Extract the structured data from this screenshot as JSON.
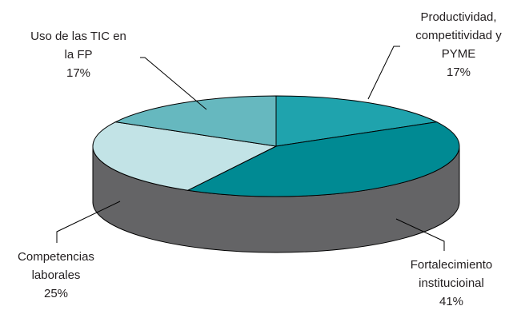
{
  "chart_data": {
    "type": "pie",
    "title": "",
    "slices": [
      {
        "label_lines": [
          "Productividad,",
          "competitividad y",
          "PYME"
        ],
        "value": 17,
        "value_label": "17%",
        "color": "#1fa3ad"
      },
      {
        "label_lines": [
          "Fortalecimiento",
          "institucioinal"
        ],
        "value": 41,
        "value_label": "41%",
        "color": "#008a93"
      },
      {
        "label_lines": [
          "Competencias",
          "laborales"
        ],
        "value": 25,
        "value_label": "25%",
        "color": "#c2e3e6"
      },
      {
        "label_lines": [
          "Uso de las TIC en",
          "la FP"
        ],
        "value": 17,
        "value_label": "17%",
        "color": "#66b8bf"
      }
    ],
    "side_color": "#646466",
    "style": "3d-pie"
  }
}
